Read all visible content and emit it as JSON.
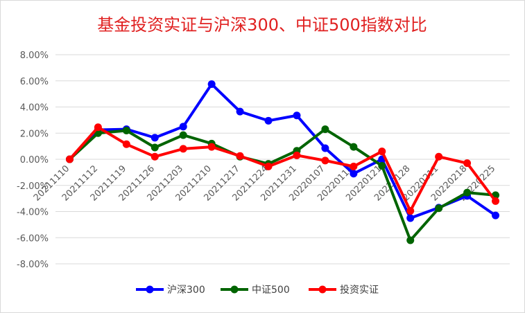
{
  "chart_data": {
    "type": "line",
    "title": "基金投资实证与沪深300、中证500指数对比",
    "xlabel": "",
    "ylabel": "",
    "x": [
      "20211110",
      "20211112",
      "20211119",
      "20211126",
      "20211203",
      "20211210",
      "20211217",
      "20211224",
      "20211231",
      "20220107",
      "20220114",
      "20220121",
      "20220128",
      "20220211",
      "20220218",
      "20220225"
    ],
    "ylim": [
      -0.08,
      0.08
    ],
    "yticks": [
      "8.00%",
      "6.00%",
      "4.00%",
      "2.00%",
      "0.00%",
      "-2.00%",
      "-4.00%",
      "-6.00%",
      "-8.00%"
    ],
    "grid": true,
    "legend_position": "bottom",
    "series": [
      {
        "name": "沪深300",
        "color": "#0000FF",
        "values": [
          0.0,
          0.0225,
          0.023,
          0.0165,
          0.025,
          0.0575,
          0.0365,
          0.0295,
          0.0335,
          0.0085,
          -0.011,
          0.0,
          -0.045,
          -0.037,
          -0.028,
          -0.043
        ]
      },
      {
        "name": "中证500",
        "color": "#006400",
        "values": [
          0.0,
          0.02,
          0.022,
          0.009,
          0.0185,
          0.012,
          0.002,
          -0.0035,
          0.0065,
          0.023,
          0.0095,
          -0.005,
          -0.062,
          -0.0375,
          -0.0255,
          -0.0275
        ]
      },
      {
        "name": "投资实证",
        "color": "#FF0000",
        "values": [
          0.0,
          0.0245,
          0.0115,
          0.002,
          0.008,
          0.0095,
          0.0025,
          -0.0055,
          0.003,
          -0.001,
          -0.0055,
          0.006,
          -0.0395,
          0.002,
          -0.003,
          -0.032
        ]
      }
    ]
  }
}
